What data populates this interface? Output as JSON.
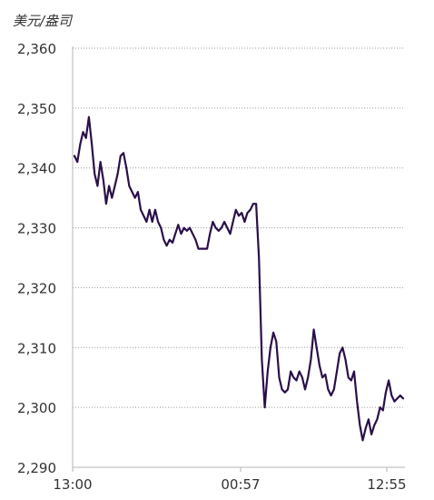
{
  "chart_data": {
    "type": "line",
    "title": "",
    "ylabel": "美元/盎司",
    "xlabel": "",
    "ylim": [
      2290,
      2360
    ],
    "yticks": [
      2290,
      2300,
      2310,
      2320,
      2330,
      2340,
      2350,
      2360
    ],
    "ytick_labels": [
      "2,290",
      "2,300",
      "2,310",
      "2,320",
      "2,330",
      "2,340",
      "2,350",
      "2,360"
    ],
    "xtick_labels": [
      "13:00",
      "00:57",
      "12:55"
    ],
    "grid": true,
    "line_color": "#2a0f4a",
    "series": [
      {
        "name": "",
        "values": [
          2342.0,
          2341.0,
          2344.0,
          2346.0,
          2345.0,
          2348.5,
          2344.0,
          2339.0,
          2337.0,
          2341.0,
          2338.0,
          2334.0,
          2337.0,
          2335.0,
          2337.0,
          2339.0,
          2342.0,
          2342.5,
          2340.0,
          2337.0,
          2336.0,
          2335.0,
          2336.0,
          2333.0,
          2332.0,
          2331.0,
          2333.0,
          2331.0,
          2333.0,
          2331.0,
          2330.0,
          2328.0,
          2327.0,
          2328.0,
          2327.5,
          2329.0,
          2330.5,
          2329.0,
          2330.0,
          2329.5,
          2330.0,
          2329.0,
          2328.0,
          2326.5,
          2326.5,
          2326.5,
          2326.5,
          2329.0,
          2331.0,
          2330.0,
          2329.5,
          2330.0,
          2331.0,
          2330.0,
          2329.0,
          2331.0,
          2333.0,
          2332.0,
          2332.5,
          2331.0,
          2332.5,
          2333.0,
          2334.0,
          2334.0,
          2325.0,
          2308.0,
          2300.0,
          2306.0,
          2310.0,
          2312.5,
          2311.0,
          2305.0,
          2303.0,
          2302.5,
          2303.0,
          2306.0,
          2305.0,
          2304.5,
          2306.0,
          2305.0,
          2303.0,
          2305.0,
          2308.0,
          2313.0,
          2310.0,
          2307.0,
          2305.0,
          2305.5,
          2303.0,
          2302.0,
          2303.0,
          2306.0,
          2309.0,
          2310.0,
          2308.0,
          2305.0,
          2304.5,
          2306.0,
          2301.0,
          2297.0,
          2294.5,
          2296.5,
          2298.0,
          2295.5,
          2297.0,
          2298.0,
          2300.0,
          2299.5,
          2302.5,
          2304.5,
          2302.0,
          2301.0,
          2301.5,
          2302.0,
          2301.5
        ]
      }
    ]
  }
}
